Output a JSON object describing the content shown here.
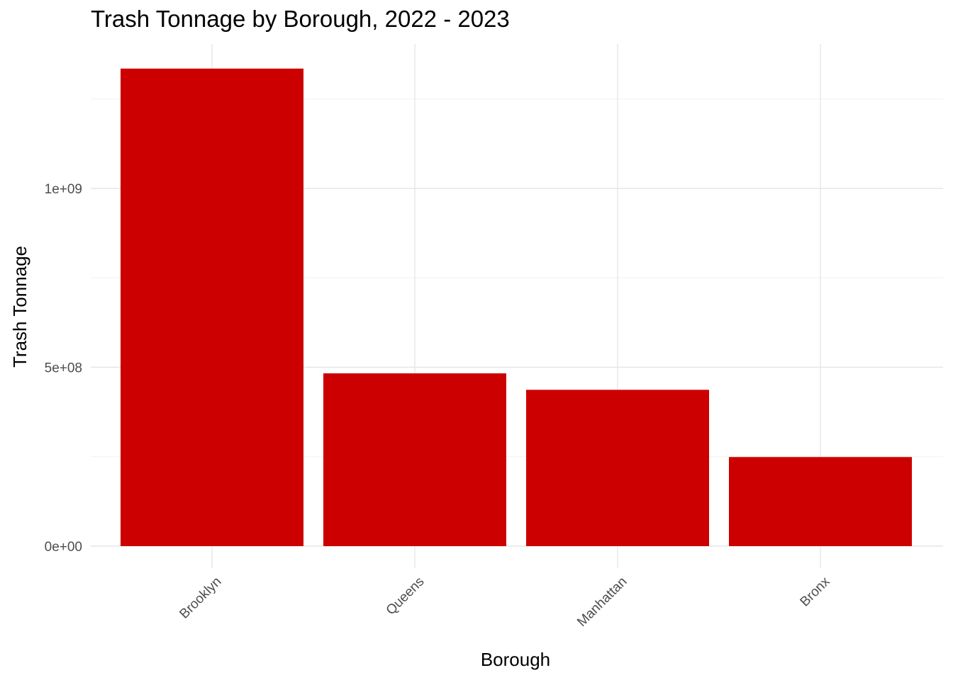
{
  "chart_data": {
    "type": "bar",
    "title": "Trash Tonnage by Borough, 2022 - 2023",
    "xlabel": "Borough",
    "ylabel": "Trash Tonnage",
    "categories": [
      "Brooklyn",
      "Queens",
      "Manhattan",
      "Bronx"
    ],
    "values": [
      1335000000,
      483000000,
      437000000,
      249000000
    ],
    "ylim": [
      0,
      1400000000
    ],
    "yticks": [
      {
        "value": 0,
        "label": "0e+00"
      },
      {
        "value": 500000000,
        "label": "5e+08"
      },
      {
        "value": 1000000000,
        "label": "1e+09"
      }
    ],
    "bar_color": "#CC0000",
    "grid": true,
    "legend": "none"
  }
}
